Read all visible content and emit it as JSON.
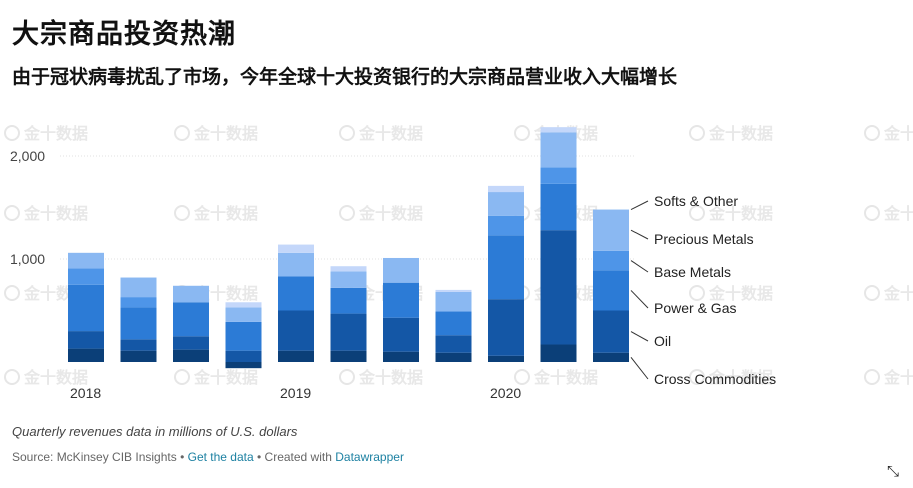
{
  "title": "大宗商品投资热潮",
  "subtitle": "由于冠状病毒扰乱了市场，今年全球十大投资银行的大宗商品营业收入大幅增长",
  "note": "Quarterly revenues data in millions of U.S. dollars",
  "source": {
    "prefix": "Source: McKinsey CIB Insights",
    "sep1": " • ",
    "get_data": "Get the data",
    "sep2": " • Created with ",
    "datawrapper": "Datawrapper"
  },
  "watermark": "金十数据",
  "expand_icon": "expand-arrows-icon",
  "chart_data": {
    "type": "bar",
    "stacked": true,
    "categories": [
      "2018 Q1",
      "2018 Q2",
      "2018 Q3",
      "2018 Q4",
      "2019 Q1",
      "2019 Q2",
      "2019 Q3",
      "2019 Q4",
      "2020 Q1",
      "2020 Q2",
      "2020 Q3"
    ],
    "x_tick_labels": [
      {
        "index": 0,
        "label": "2018"
      },
      {
        "index": 4,
        "label": "2019"
      },
      {
        "index": 8,
        "label": "2020"
      }
    ],
    "ylim": [
      0,
      2350
    ],
    "yticks": [
      {
        "value": 1000,
        "label": "1,000"
      },
      {
        "value": 2000,
        "label": "2,000"
      }
    ],
    "series": [
      {
        "name": "Cross Commodities",
        "color": "#0b3f78",
        "values": [
          130,
          110,
          120,
          -60,
          110,
          110,
          100,
          90,
          60,
          170,
          90
        ]
      },
      {
        "name": "Oil",
        "color": "#1457a6",
        "values": [
          170,
          110,
          130,
          110,
          390,
          360,
          330,
          170,
          550,
          1110,
          410
        ]
      },
      {
        "name": "Power & Gas",
        "color": "#2c7bd6",
        "values": [
          450,
          310,
          330,
          280,
          330,
          250,
          340,
          230,
          620,
          450,
          390
        ]
      },
      {
        "name": "Base Metals",
        "color": "#4e95e8",
        "values": [
          160,
          100,
          0,
          0,
          0,
          0,
          0,
          0,
          190,
          160,
          190
        ]
      },
      {
        "name": "Precious Metals",
        "color": "#8ab8f2",
        "values": [
          150,
          190,
          160,
          140,
          230,
          160,
          240,
          190,
          230,
          340,
          400
        ]
      },
      {
        "name": "Softs & Other",
        "color": "#c4d7fa",
        "values": [
          0,
          0,
          0,
          50,
          80,
          50,
          0,
          20,
          60,
          50,
          0
        ]
      }
    ]
  }
}
